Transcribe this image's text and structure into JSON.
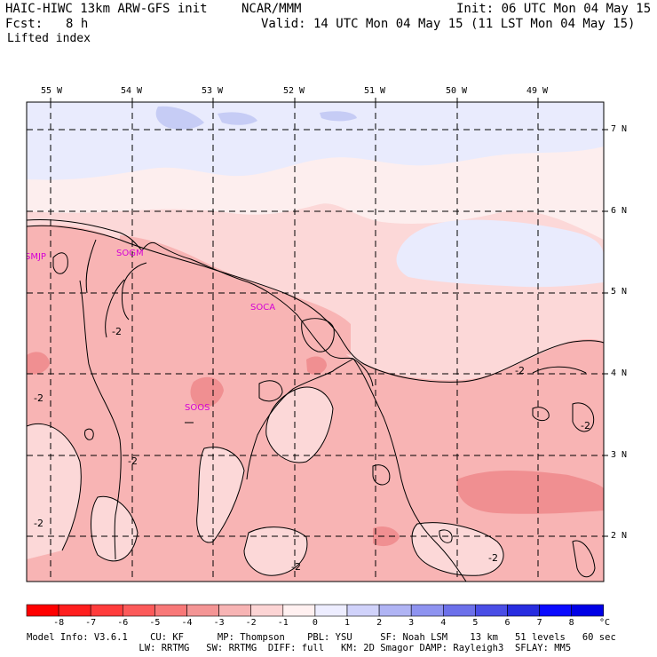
{
  "header": {
    "model": "HAIC-HIWC 13km ARW-GFS init",
    "org": "NCAR/MMM",
    "init": "Init: 06 UTC Mon 04 May 15",
    "fcst_label": "Fcst:",
    "fcst_value": "8 h",
    "valid": "Valid: 14 UTC Mon 04 May 15 (11 LST Mon 04 May 15)",
    "field": "Lifted index"
  },
  "map": {
    "longitude_labels": [
      "55 W",
      "54 W",
      "53 W",
      "52 W",
      "51 W",
      "50 W",
      "49 W"
    ],
    "latitude_labels": [
      "7 N",
      "6 N",
      "5 N",
      "4 N",
      "3 N",
      "2 N"
    ],
    "stations": [
      "SMJP",
      "SOGM",
      "SOCA",
      "SOOS"
    ],
    "contour_label": "-2",
    "colors": {
      "strong_neg": "#f08f91",
      "mid_neg": "#f8b4b4",
      "weak_neg": "#fcd8d8",
      "near_zero": "#fdeeee",
      "weak_pos": "#e9ebfd",
      "mod_pos": "#c6ccf5",
      "station": "#d400d4"
    }
  },
  "colorbar": {
    "ticks": [
      "-8",
      "-7",
      "-6",
      "-5",
      "-4",
      "-3",
      "-2",
      "-1",
      "0",
      "1",
      "2",
      "3",
      "4",
      "5",
      "6",
      "7",
      "8"
    ],
    "unit": "°C",
    "colors": [
      "#ff0000",
      "#ff1e1e",
      "#ff3c3c",
      "#fc5a5a",
      "#f87878",
      "#f49595",
      "#f7b4b4",
      "#fcd4d4",
      "#fff0f0",
      "#ededff",
      "#d0d2fa",
      "#b0b4f4",
      "#8e93f0",
      "#6c70ea",
      "#4a4ee6",
      "#282de0",
      "#0a0aff",
      "#0000e6"
    ]
  },
  "footer": {
    "line1": "Model Info: V3.6.1    CU: KF      MP: Thompson    PBL: YSU     SF: Noah LSM    13 km   51 levels   60 sec",
    "line2": "                    LW: RRTMG   SW: RRTMG  DIFF: full   KM: 2D Smagor DAMP: Rayleigh3  SFLAY: MM5"
  }
}
